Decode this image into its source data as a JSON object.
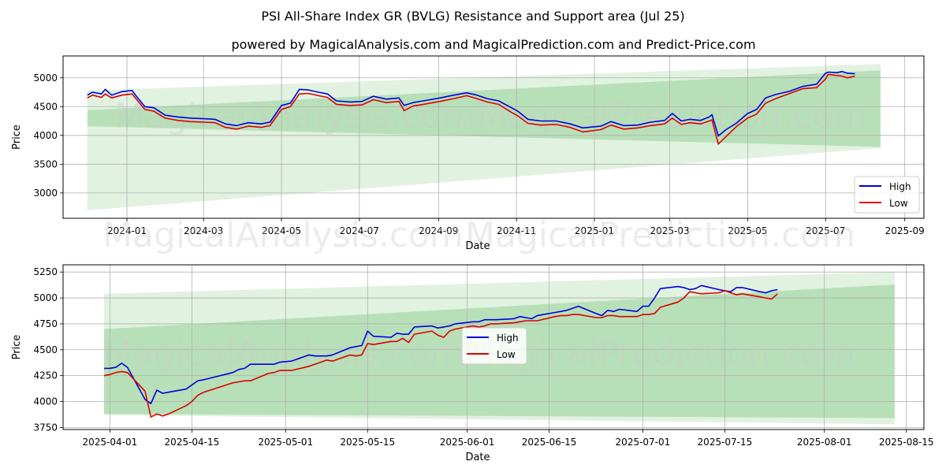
{
  "title": "PSI All-Share Index GR (BVLG) Resistance and Support area (Jul 25)",
  "subtitle": "powered by MagicalAnalysis.com and MagicalPrediction.com and Predict-Price.com",
  "watermarks": [
    "MagicalAnalysis.com",
    "MagicalPrediction.com"
  ],
  "colors": {
    "high": "#0000dd",
    "low": "#dd0000",
    "band_dark": "#9dd39d",
    "band_light": "#c9e8c9"
  },
  "chart_data": [
    {
      "type": "line",
      "xlabel": "Date",
      "ylabel": "Price",
      "xlim": [
        "2023-11-12",
        "2025-09-16"
      ],
      "ylim": [
        2560,
        5380
      ],
      "yticks": [
        3000,
        3500,
        4000,
        4500,
        5000
      ],
      "xticks": [
        "2024-01",
        "2024-03",
        "2024-05",
        "2024-07",
        "2024-09",
        "2024-11",
        "2025-01",
        "2025-03",
        "2025-05",
        "2025-07",
        "2025-09"
      ],
      "legend": {
        "position": "lower-right",
        "entries": [
          "High",
          "Low"
        ]
      },
      "bands": [
        {
          "name": "light support/resistance",
          "x": [
            "2023-12-01",
            "2025-08-13"
          ],
          "upper": [
            4780,
            5240
          ],
          "lower": [
            2700,
            3780
          ]
        },
        {
          "name": "dark support/resistance",
          "x": [
            "2023-12-01",
            "2025-08-13"
          ],
          "upper": [
            4440,
            5130
          ],
          "lower": [
            4160,
            3800
          ]
        }
      ],
      "series": [
        {
          "name": "High",
          "x": [
            "2023-12-01",
            "2023-12-05",
            "2023-12-12",
            "2023-12-15",
            "2023-12-20",
            "2023-12-28",
            "2024-01-05",
            "2024-01-08",
            "2024-01-15",
            "2024-01-22",
            "2024-01-31",
            "2024-02-10",
            "2024-02-20",
            "2024-03-01",
            "2024-03-10",
            "2024-03-18",
            "2024-03-27",
            "2024-04-05",
            "2024-04-15",
            "2024-04-22",
            "2024-05-01",
            "2024-05-08",
            "2024-05-15",
            "2024-05-22",
            "2024-05-30",
            "2024-06-06",
            "2024-06-13",
            "2024-06-24",
            "2024-07-03",
            "2024-07-12",
            "2024-07-22",
            "2024-08-01",
            "2024-08-05",
            "2024-08-12",
            "2024-08-20",
            "2024-09-02",
            "2024-09-13",
            "2024-09-23",
            "2024-10-01",
            "2024-10-09",
            "2024-10-18",
            "2024-10-28",
            "2024-11-02",
            "2024-11-10",
            "2024-11-20",
            "2024-12-02",
            "2024-12-13",
            "2024-12-23",
            "2025-01-06",
            "2025-01-14",
            "2025-01-24",
            "2025-02-04",
            "2025-02-14",
            "2025-02-25",
            "2025-03-03",
            "2025-03-10",
            "2025-03-17",
            "2025-03-25",
            "2025-04-01",
            "2025-04-03",
            "2025-04-08",
            "2025-04-14",
            "2025-04-22",
            "2025-05-01",
            "2025-05-08",
            "2025-05-15",
            "2025-05-23",
            "2025-06-03",
            "2025-06-13",
            "2025-06-24",
            "2025-07-01",
            "2025-07-03",
            "2025-07-10",
            "2025-07-14",
            "2025-07-18",
            "2025-07-24"
          ],
          "values": [
            4700,
            4750,
            4720,
            4800,
            4700,
            4760,
            4780,
            4690,
            4500,
            4480,
            4350,
            4320,
            4300,
            4290,
            4280,
            4200,
            4170,
            4220,
            4200,
            4230,
            4520,
            4560,
            4800,
            4790,
            4750,
            4720,
            4600,
            4580,
            4590,
            4680,
            4630,
            4650,
            4520,
            4570,
            4600,
            4650,
            4700,
            4740,
            4700,
            4640,
            4600,
            4480,
            4420,
            4280,
            4250,
            4250,
            4200,
            4130,
            4160,
            4240,
            4170,
            4180,
            4230,
            4260,
            4380,
            4250,
            4280,
            4260,
            4320,
            4360,
            3990,
            4100,
            4210,
            4380,
            4450,
            4650,
            4710,
            4770,
            4850,
            4890,
            5080,
            5100,
            5090,
            5110,
            5080,
            5070
          ]
        },
        {
          "name": "Low",
          "x": [
            "2023-12-01",
            "2023-12-05",
            "2023-12-12",
            "2023-12-15",
            "2023-12-20",
            "2023-12-28",
            "2024-01-05",
            "2024-01-08",
            "2024-01-15",
            "2024-01-22",
            "2024-01-31",
            "2024-02-10",
            "2024-02-20",
            "2024-03-01",
            "2024-03-10",
            "2024-03-18",
            "2024-03-27",
            "2024-04-05",
            "2024-04-15",
            "2024-04-22",
            "2024-05-01",
            "2024-05-08",
            "2024-05-15",
            "2024-05-22",
            "2024-05-30",
            "2024-06-06",
            "2024-06-13",
            "2024-06-24",
            "2024-07-03",
            "2024-07-12",
            "2024-07-22",
            "2024-08-01",
            "2024-08-05",
            "2024-08-12",
            "2024-08-20",
            "2024-09-02",
            "2024-09-13",
            "2024-09-23",
            "2024-10-01",
            "2024-10-09",
            "2024-10-18",
            "2024-10-28",
            "2024-11-02",
            "2024-11-10",
            "2024-11-20",
            "2024-12-02",
            "2024-12-13",
            "2024-12-23",
            "2025-01-06",
            "2025-01-14",
            "2025-01-24",
            "2025-02-04",
            "2025-02-14",
            "2025-02-25",
            "2025-03-03",
            "2025-03-10",
            "2025-03-17",
            "2025-03-25",
            "2025-04-01",
            "2025-04-03",
            "2025-04-08",
            "2025-04-14",
            "2025-04-22",
            "2025-05-01",
            "2025-05-08",
            "2025-05-15",
            "2025-05-23",
            "2025-06-03",
            "2025-06-13",
            "2025-06-24",
            "2025-07-01",
            "2025-07-03",
            "2025-07-10",
            "2025-07-14",
            "2025-07-18",
            "2025-07-24"
          ],
          "values": [
            4650,
            4700,
            4660,
            4720,
            4650,
            4700,
            4720,
            4640,
            4450,
            4420,
            4300,
            4260,
            4240,
            4230,
            4220,
            4140,
            4110,
            4160,
            4140,
            4170,
            4450,
            4500,
            4720,
            4730,
            4690,
            4660,
            4540,
            4520,
            4530,
            4620,
            4570,
            4590,
            4430,
            4510,
            4540,
            4590,
            4640,
            4690,
            4640,
            4580,
            4540,
            4400,
            4340,
            4210,
            4180,
            4190,
            4140,
            4060,
            4100,
            4180,
            4110,
            4130,
            4170,
            4200,
            4300,
            4190,
            4220,
            4200,
            4250,
            4270,
            3850,
            3980,
            4150,
            4300,
            4370,
            4560,
            4640,
            4730,
            4810,
            4830,
            4980,
            5060,
            5040,
            5030,
            5000,
            5030
          ]
        }
      ]
    },
    {
      "type": "line",
      "xlabel": "Date",
      "ylabel": "Price",
      "xlim": [
        "2025-03-24",
        "2025-08-18"
      ],
      "ylim": [
        3730,
        5320
      ],
      "yticks": [
        3750,
        4000,
        4250,
        4500,
        4750,
        5000,
        5250
      ],
      "xticks": [
        "2025-04-01",
        "2025-04-15",
        "2025-05-01",
        "2025-05-15",
        "2025-06-01",
        "2025-06-15",
        "2025-07-01",
        "2025-07-15",
        "2025-08-01",
        "2025-08-15"
      ],
      "legend": {
        "position": "center",
        "entries": [
          "High",
          "Low"
        ]
      },
      "bands": [
        {
          "name": "light support/resistance",
          "x": [
            "2025-03-31",
            "2025-08-13"
          ],
          "upper": [
            5040,
            5250
          ],
          "lower": [
            3870,
            3780
          ]
        },
        {
          "name": "dark support/resistance",
          "x": [
            "2025-03-31",
            "2025-08-13"
          ],
          "upper": [
            4700,
            5130
          ],
          "lower": [
            3880,
            3840
          ]
        }
      ],
      "series": [
        {
          "name": "High",
          "x": [
            "2025-03-31",
            "2025-04-01",
            "2025-04-02",
            "2025-04-03",
            "2025-04-04",
            "2025-04-07",
            "2025-04-08",
            "2025-04-09",
            "2025-04-10",
            "2025-04-11",
            "2025-04-14",
            "2025-04-15",
            "2025-04-16",
            "2025-04-17",
            "2025-04-22",
            "2025-04-23",
            "2025-04-24",
            "2025-04-25",
            "2025-04-28",
            "2025-04-29",
            "2025-04-30",
            "2025-05-02",
            "2025-05-05",
            "2025-05-06",
            "2025-05-07",
            "2025-05-08",
            "2025-05-09",
            "2025-05-12",
            "2025-05-13",
            "2025-05-14",
            "2025-05-15",
            "2025-05-16",
            "2025-05-19",
            "2025-05-20",
            "2025-05-21",
            "2025-05-22",
            "2025-05-23",
            "2025-05-26",
            "2025-05-27",
            "2025-05-28",
            "2025-05-29",
            "2025-05-30",
            "2025-06-02",
            "2025-06-03",
            "2025-06-04",
            "2025-06-05",
            "2025-06-06",
            "2025-06-09",
            "2025-06-10",
            "2025-06-11",
            "2025-06-12",
            "2025-06-13",
            "2025-06-16",
            "2025-06-17",
            "2025-06-18",
            "2025-06-19",
            "2025-06-20",
            "2025-06-23",
            "2025-06-24",
            "2025-06-25",
            "2025-06-26",
            "2025-06-27",
            "2025-06-30",
            "2025-07-01",
            "2025-07-02",
            "2025-07-03",
            "2025-07-04",
            "2025-07-07",
            "2025-07-08",
            "2025-07-09",
            "2025-07-10",
            "2025-07-11",
            "2025-07-14",
            "2025-07-15",
            "2025-07-16",
            "2025-07-17",
            "2025-07-18",
            "2025-07-21",
            "2025-07-22",
            "2025-07-23",
            "2025-07-24"
          ],
          "values": [
            4320,
            4320,
            4330,
            4370,
            4330,
            4020,
            3980,
            4110,
            4080,
            4090,
            4120,
            4160,
            4200,
            4210,
            4280,
            4310,
            4320,
            4360,
            4360,
            4360,
            4380,
            4390,
            4450,
            4440,
            4440,
            4440,
            4450,
            4520,
            4530,
            4540,
            4680,
            4630,
            4620,
            4660,
            4650,
            4650,
            4720,
            4730,
            4710,
            4720,
            4730,
            4750,
            4770,
            4770,
            4790,
            4790,
            4790,
            4800,
            4820,
            4810,
            4800,
            4830,
            4860,
            4870,
            4880,
            4900,
            4920,
            4850,
            4830,
            4880,
            4870,
            4890,
            4870,
            4920,
            4920,
            5000,
            5090,
            5110,
            5100,
            5080,
            5090,
            5120,
            5080,
            5070,
            5060,
            5100,
            5100,
            5060,
            5050,
            5070,
            5080
          ]
        },
        {
          "name": "Low",
          "x": [
            "2025-03-31",
            "2025-04-01",
            "2025-04-02",
            "2025-04-03",
            "2025-04-04",
            "2025-04-07",
            "2025-04-08",
            "2025-04-09",
            "2025-04-10",
            "2025-04-11",
            "2025-04-14",
            "2025-04-15",
            "2025-04-16",
            "2025-04-17",
            "2025-04-22",
            "2025-04-23",
            "2025-04-24",
            "2025-04-25",
            "2025-04-28",
            "2025-04-29",
            "2025-04-30",
            "2025-05-02",
            "2025-05-05",
            "2025-05-06",
            "2025-05-07",
            "2025-05-08",
            "2025-05-09",
            "2025-05-12",
            "2025-05-13",
            "2025-05-14",
            "2025-05-15",
            "2025-05-16",
            "2025-05-19",
            "2025-05-20",
            "2025-05-21",
            "2025-05-22",
            "2025-05-23",
            "2025-05-26",
            "2025-05-27",
            "2025-05-28",
            "2025-05-29",
            "2025-05-30",
            "2025-06-02",
            "2025-06-03",
            "2025-06-04",
            "2025-06-05",
            "2025-06-06",
            "2025-06-09",
            "2025-06-10",
            "2025-06-11",
            "2025-06-12",
            "2025-06-13",
            "2025-06-16",
            "2025-06-17",
            "2025-06-18",
            "2025-06-19",
            "2025-06-20",
            "2025-06-23",
            "2025-06-24",
            "2025-06-25",
            "2025-06-26",
            "2025-06-27",
            "2025-06-30",
            "2025-07-01",
            "2025-07-02",
            "2025-07-03",
            "2025-07-04",
            "2025-07-07",
            "2025-07-08",
            "2025-07-09",
            "2025-07-10",
            "2025-07-11",
            "2025-07-14",
            "2025-07-15",
            "2025-07-16",
            "2025-07-17",
            "2025-07-18",
            "2025-07-21",
            "2025-07-22",
            "2025-07-23",
            "2025-07-24"
          ],
          "values": [
            4250,
            4260,
            4280,
            4290,
            4280,
            4100,
            3850,
            3880,
            3860,
            3880,
            3960,
            4000,
            4060,
            4090,
            4180,
            4190,
            4200,
            4200,
            4270,
            4280,
            4300,
            4300,
            4340,
            4360,
            4380,
            4400,
            4390,
            4450,
            4440,
            4450,
            4560,
            4550,
            4580,
            4580,
            4610,
            4570,
            4650,
            4680,
            4640,
            4620,
            4680,
            4700,
            4730,
            4720,
            4730,
            4750,
            4750,
            4760,
            4770,
            4780,
            4780,
            4780,
            4820,
            4830,
            4830,
            4840,
            4840,
            4810,
            4810,
            4830,
            4830,
            4820,
            4820,
            4840,
            4840,
            4850,
            4910,
            4960,
            5000,
            5060,
            5050,
            5040,
            5050,
            5070,
            5050,
            5030,
            5040,
            5010,
            5000,
            4990,
            5040
          ]
        }
      ]
    }
  ]
}
